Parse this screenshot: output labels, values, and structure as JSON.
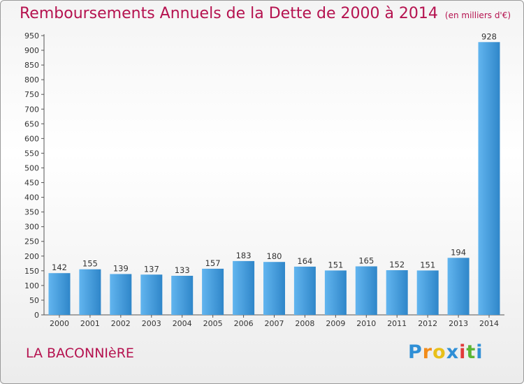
{
  "chart_data": {
    "type": "bar",
    "title": "Remboursements Annuels de la Dette de 2000 à 2014",
    "unit": "(en milliers d'€)",
    "categories": [
      "2000",
      "2001",
      "2002",
      "2003",
      "2004",
      "2005",
      "2006",
      "2007",
      "2008",
      "2009",
      "2010",
      "2011",
      "2012",
      "2013",
      "2014"
    ],
    "values": [
      142,
      155,
      139,
      137,
      133,
      157,
      183,
      180,
      164,
      151,
      165,
      152,
      151,
      194,
      928
    ],
    "ylim": [
      0,
      950
    ],
    "yticks": [
      0,
      50,
      100,
      150,
      200,
      250,
      300,
      350,
      400,
      450,
      500,
      550,
      600,
      650,
      700,
      750,
      800,
      850,
      900,
      950
    ],
    "grid": false,
    "bar_color": "#4a9fdb"
  },
  "commune": "LA BACONNIèRE",
  "logo": {
    "letters": [
      "P",
      "r",
      "o",
      "x",
      "i",
      "t",
      "i"
    ],
    "colors": [
      "#2f8fd6",
      "#f28c1a",
      "#e8c01a",
      "#2f8fd6",
      "#e23a3a",
      "#5bb534",
      "#2f8fd6"
    ]
  }
}
